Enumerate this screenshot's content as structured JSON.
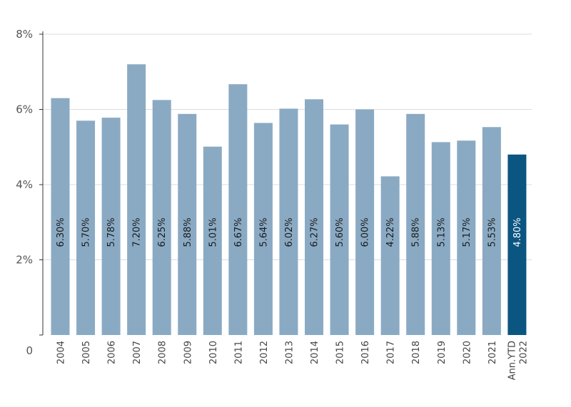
{
  "chart_data": {
    "type": "bar",
    "categories": [
      "2004",
      "2005",
      "2006",
      "2007",
      "2008",
      "2009",
      "2010",
      "2011",
      "2012",
      "2013",
      "2014",
      "2015",
      "2016",
      "2017",
      "2018",
      "2019",
      "2020",
      "2021",
      "Ann.YTD 2022"
    ],
    "values": [
      6.3,
      5.7,
      5.78,
      7.2,
      6.25,
      5.88,
      5.01,
      6.67,
      5.64,
      6.02,
      6.27,
      5.6,
      6.0,
      4.22,
      5.88,
      5.13,
      5.17,
      5.53,
      4.8
    ],
    "data_labels": [
      "6.30%",
      "5.70%",
      "5.78%",
      "7.20%",
      "6.25%",
      "5.88%",
      "5.01%",
      "6.67%",
      "5.64%",
      "6.02%",
      "6.27%",
      "5.60%",
      "6.00%",
      "4.22%",
      "5.88%",
      "5.13%",
      "5.17%",
      "5.53%",
      "4.80%"
    ],
    "y_ticks": [
      {
        "value": 0,
        "label": "0"
      },
      {
        "value": 2,
        "label": "2%"
      },
      {
        "value": 4,
        "label": "4%"
      },
      {
        "value": 6,
        "label": "6%"
      },
      {
        "value": 8,
        "label": "8%"
      }
    ],
    "ylim": [
      0,
      8
    ],
    "grid": true,
    "colors": {
      "bar": "#8aaac4",
      "highlight": "#0b5581",
      "grid": "#dddddd",
      "axis": "#333333"
    },
    "highlight_index": 18
  }
}
